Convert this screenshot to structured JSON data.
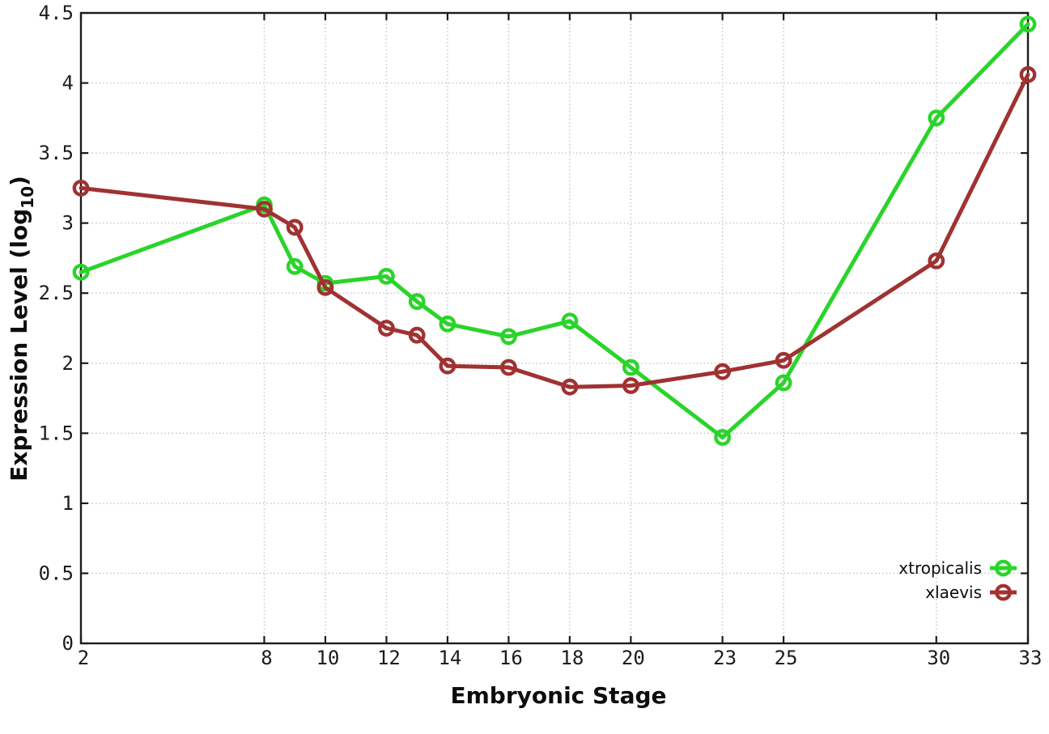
{
  "page": {
    "background": "#ffffff",
    "border_color": "#1c1c1c",
    "grid_color": "#c4c4c4",
    "text_color": "#1c1c1c"
  },
  "chart_data": {
    "type": "line",
    "title": "",
    "xlabel": "Embryonic Stage",
    "ylabel": "Expression Level (log10)",
    "ylabel_parts": {
      "prefix": "Expression Level (log",
      "sub": "10",
      "suffix": ")"
    },
    "x": [
      2,
      8,
      9,
      10,
      12,
      13,
      14,
      16,
      18,
      20,
      23,
      25,
      30,
      33
    ],
    "series": [
      {
        "name": "xtropicalis",
        "color": "#2ad42a",
        "values": [
          2.65,
          3.13,
          2.69,
          2.57,
          2.62,
          2.44,
          2.28,
          2.19,
          2.3,
          1.97,
          1.47,
          1.86,
          3.75,
          4.42
        ]
      },
      {
        "name": "xlaevis",
        "color": "#a03232",
        "values": [
          3.25,
          3.1,
          2.97,
          2.54,
          2.25,
          2.2,
          1.98,
          1.97,
          1.83,
          1.84,
          1.94,
          2.02,
          2.73,
          4.06
        ]
      }
    ],
    "x_ticks": [
      2,
      8,
      10,
      12,
      14,
      16,
      18,
      20,
      23,
      25,
      30,
      33
    ],
    "y_ticks": [
      0,
      0.5,
      1,
      1.5,
      2,
      2.5,
      3,
      3.5,
      4,
      4.5
    ],
    "xlim": [
      2,
      33
    ],
    "ylim": [
      0,
      4.5
    ],
    "grid": true,
    "legend_position": "bottom-right-inside",
    "marker": "open-circle"
  }
}
